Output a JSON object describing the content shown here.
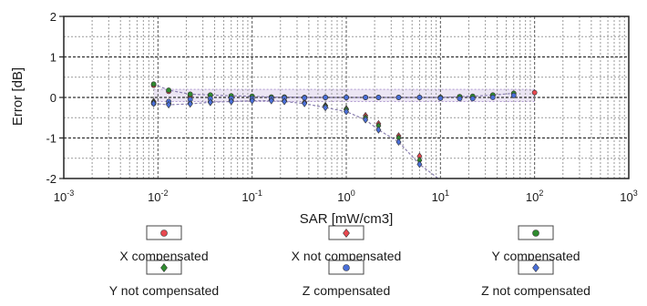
{
  "chart_data": {
    "type": "scatter",
    "xlabel": "SAR [mW/cm3]",
    "ylabel": "Error [dB]",
    "xscale": "log",
    "xlim": [
      0.001,
      1000
    ],
    "ylim": [
      -2,
      2
    ],
    "x_ticks": [
      {
        "base": "10",
        "exp": "-3"
      },
      {
        "base": "10",
        "exp": "-2"
      },
      {
        "base": "10",
        "exp": "-1"
      },
      {
        "base": "10",
        "exp": "0"
      },
      {
        "base": "10",
        "exp": "1"
      },
      {
        "base": "10",
        "exp": "2"
      },
      {
        "base": "10",
        "exp": "3"
      }
    ],
    "y_ticks": [
      "2",
      "1",
      "0",
      "-1",
      "-2"
    ],
    "uncertainty_band": [
      -0.1,
      0.2
    ],
    "grid": true,
    "legend_position": "bottom",
    "series": [
      {
        "name": "X compensated",
        "marker": "circle",
        "color": "#e8484f",
        "x": [
          0.009,
          0.013,
          0.022,
          0.036,
          0.06,
          0.1,
          0.16,
          0.22,
          0.36,
          0.6,
          1.0,
          1.6,
          2.2,
          3.6,
          6.0,
          10,
          16,
          22,
          36,
          60,
          100
        ],
        "y": [
          0.3,
          0.15,
          0.05,
          0.05,
          0.02,
          0.02,
          0.0,
          0.0,
          0.0,
          0.0,
          0.0,
          0.0,
          0.0,
          0.0,
          0.0,
          0.0,
          0.02,
          0.02,
          0.05,
          0.1,
          0.12
        ]
      },
      {
        "name": "X not compensated",
        "marker": "diamond",
        "color": "#e8484f",
        "x": [
          0.009,
          0.013,
          0.022,
          0.036,
          0.06,
          0.1,
          0.16,
          0.22,
          0.36,
          0.6,
          1.0,
          1.6,
          2.2,
          3.6,
          6.0
        ],
        "y": [
          -0.1,
          -0.15,
          -0.15,
          -0.12,
          -0.08,
          -0.05,
          -0.05,
          -0.08,
          -0.12,
          -0.2,
          -0.28,
          -0.45,
          -0.65,
          -0.95,
          -1.45
        ]
      },
      {
        "name": "Y compensated",
        "marker": "circle",
        "color": "#2e8b2e",
        "x": [
          0.009,
          0.013,
          0.022,
          0.036,
          0.06,
          0.1,
          0.16,
          0.22,
          0.36,
          0.6,
          1.0,
          1.6,
          2.2,
          3.6,
          6.0,
          10,
          16,
          22,
          36,
          60
        ],
        "y": [
          0.33,
          0.18,
          0.08,
          0.06,
          0.04,
          0.03,
          0.01,
          0.01,
          0.0,
          0.0,
          0.0,
          0.0,
          0.0,
          0.0,
          0.0,
          0.0,
          0.02,
          0.03,
          0.06,
          0.1
        ]
      },
      {
        "name": "Y not compensated",
        "marker": "diamond",
        "color": "#2e8b2e",
        "x": [
          0.009,
          0.013,
          0.022,
          0.036,
          0.06,
          0.1,
          0.16,
          0.22,
          0.36,
          0.6,
          1.0,
          1.6,
          2.2,
          3.6,
          6.0
        ],
        "y": [
          -0.12,
          -0.16,
          -0.14,
          -0.1,
          -0.07,
          -0.05,
          -0.06,
          -0.09,
          -0.14,
          -0.22,
          -0.3,
          -0.5,
          -0.7,
          -1.0,
          -1.55
        ]
      },
      {
        "name": "Z compensated",
        "marker": "circle",
        "color": "#4a6fd8",
        "x": [
          0.009,
          0.013,
          0.022,
          0.036,
          0.06,
          0.1,
          0.16,
          0.22,
          0.36,
          0.6,
          1.0,
          1.6,
          2.2,
          3.6,
          6.0,
          10,
          16,
          22,
          36,
          60
        ],
        "y": [
          -0.15,
          -0.1,
          -0.05,
          -0.03,
          -0.02,
          -0.02,
          -0.02,
          -0.01,
          -0.01,
          0.0,
          0.0,
          0.0,
          0.0,
          0.0,
          0.0,
          -0.02,
          -0.03,
          -0.03,
          0.0,
          0.05
        ]
      },
      {
        "name": "Z not compensated",
        "marker": "diamond",
        "color": "#4a6fd8",
        "x": [
          0.009,
          0.013,
          0.022,
          0.036,
          0.06,
          0.1,
          0.16,
          0.22,
          0.36,
          0.6,
          1.0,
          1.6,
          2.2,
          3.6,
          6.0
        ],
        "y": [
          -0.15,
          -0.18,
          -0.16,
          -0.12,
          -0.1,
          -0.08,
          -0.08,
          -0.1,
          -0.15,
          -0.25,
          -0.35,
          -0.55,
          -0.8,
          -1.1,
          -1.65
        ]
      }
    ]
  }
}
